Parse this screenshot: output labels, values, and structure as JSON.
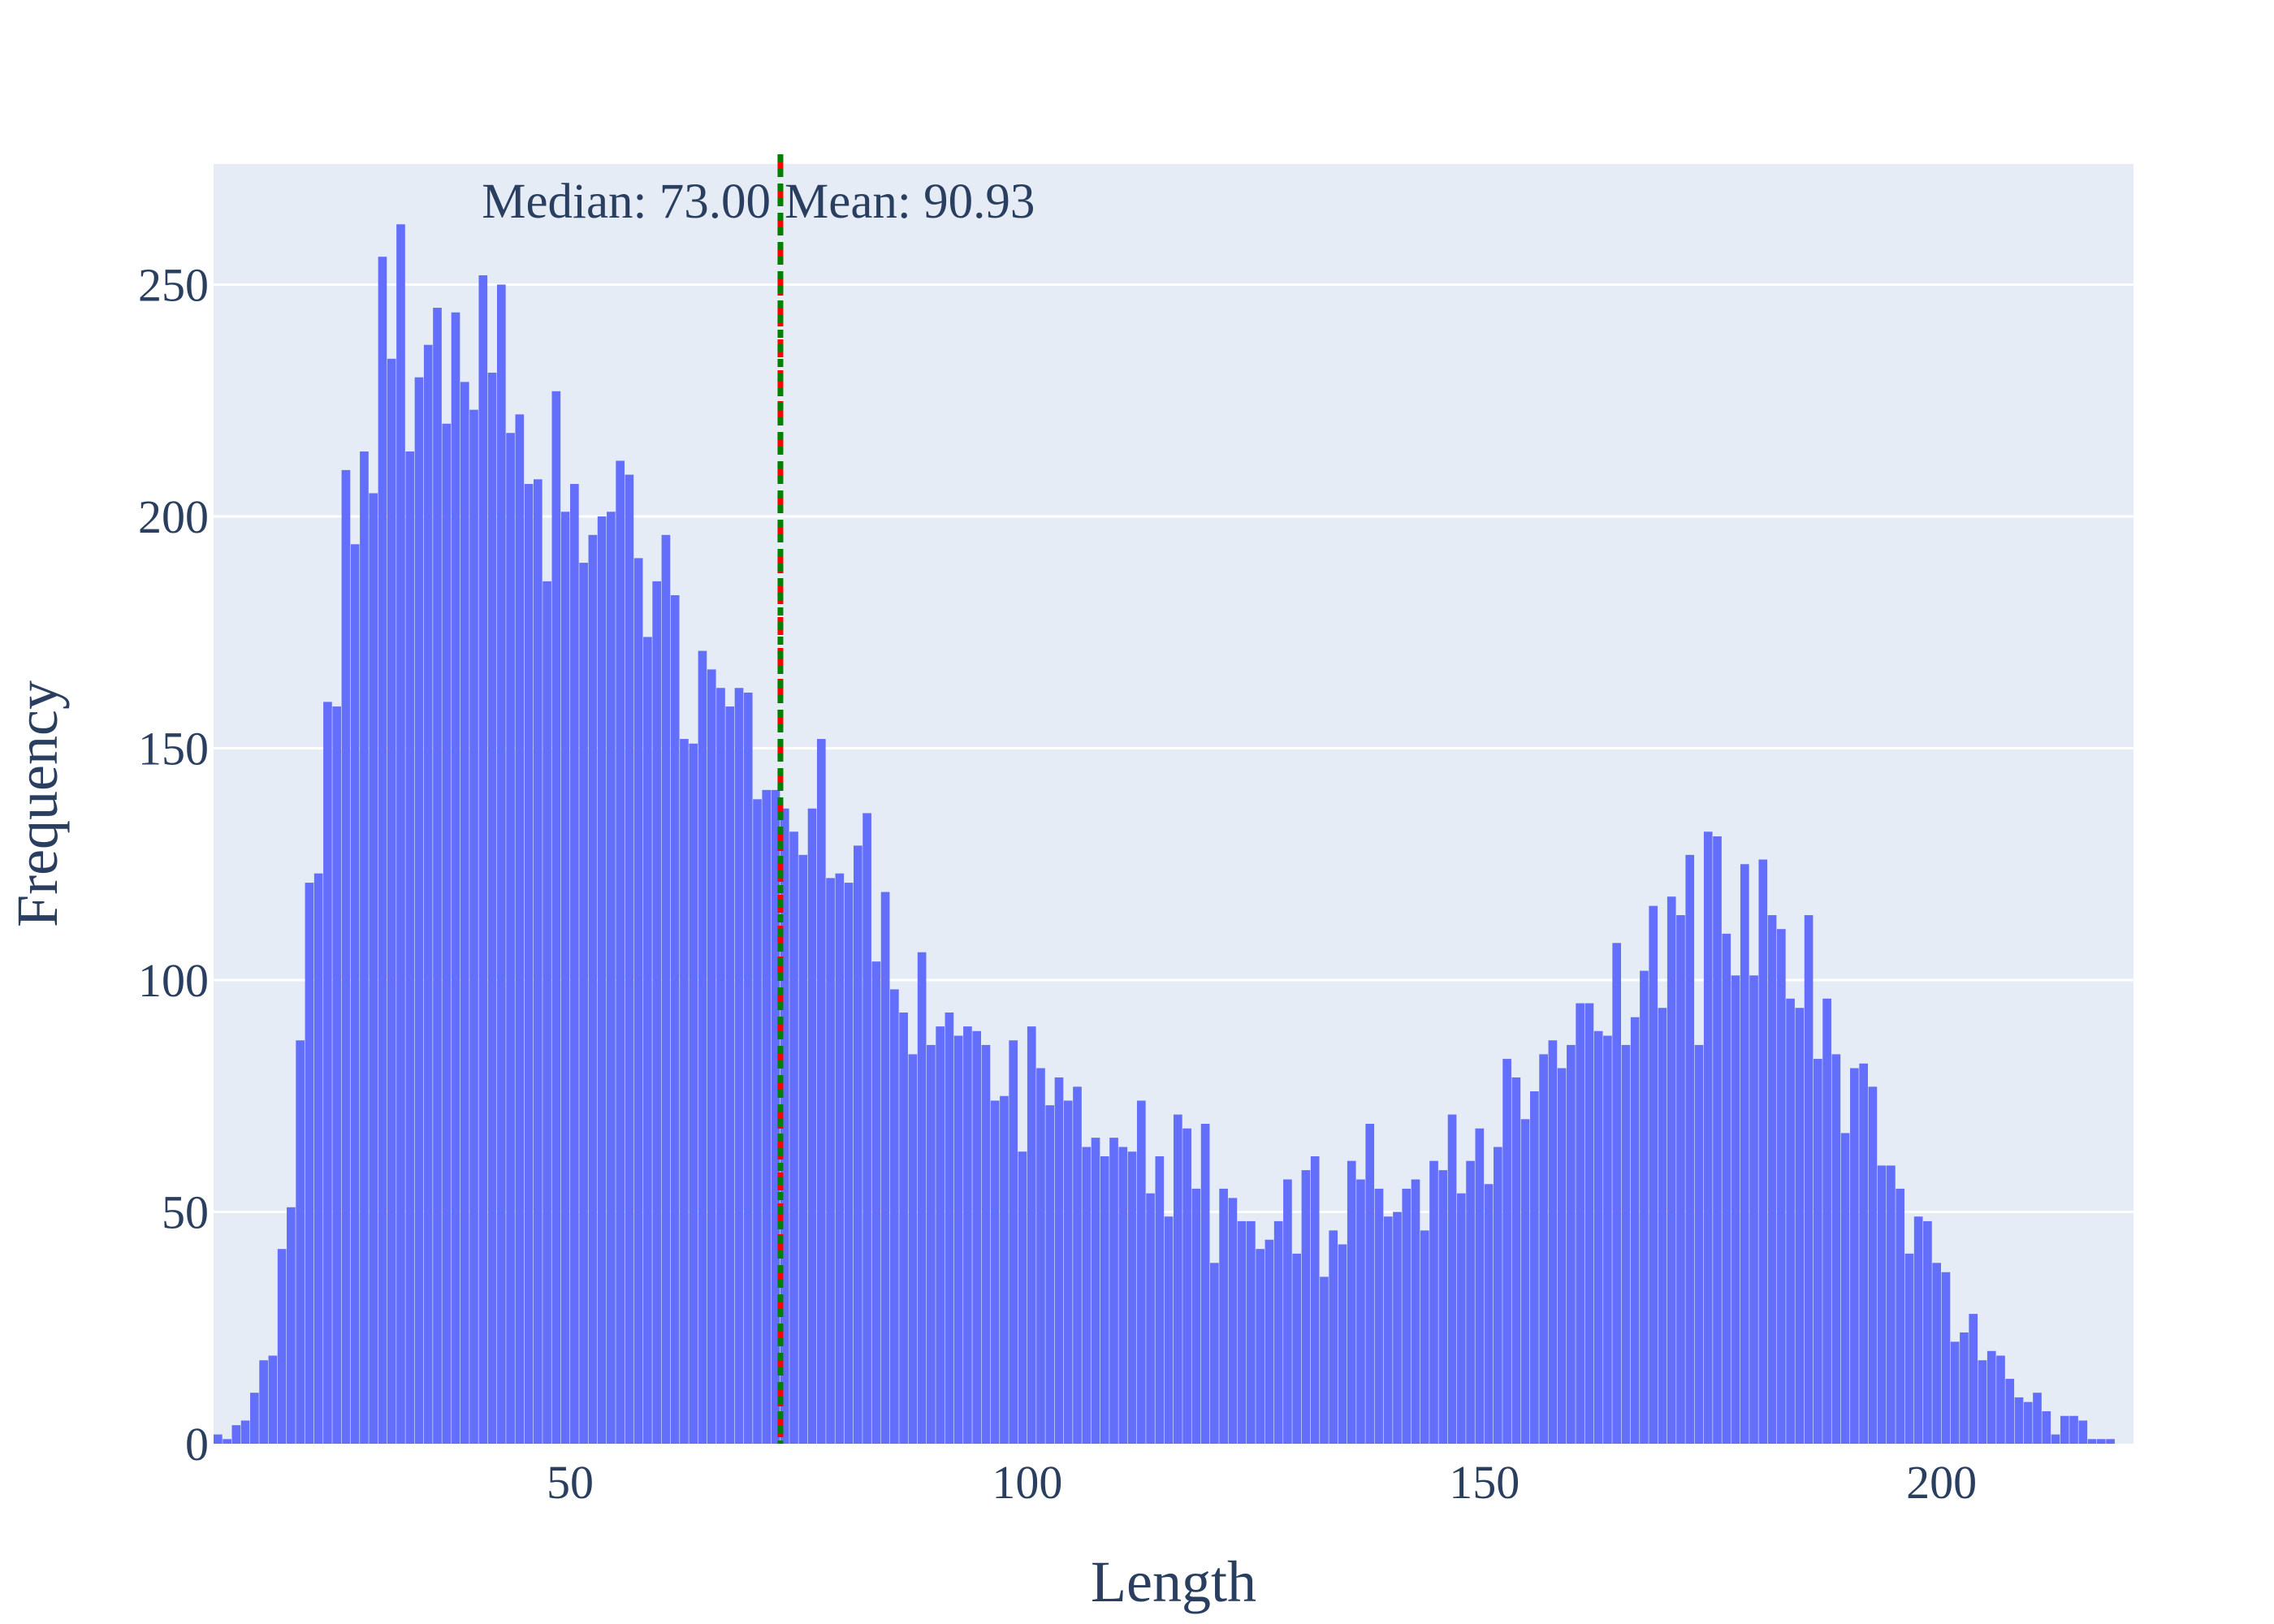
{
  "chart_data": {
    "type": "bar",
    "title": "",
    "xlabel": "Length",
    "ylabel": "Frequency",
    "xlim": [
      11,
      221
    ],
    "ylim": [
      0,
      276
    ],
    "bin_start": 11,
    "bin_width": 1,
    "x_ticks": [
      50,
      100,
      150,
      200
    ],
    "y_ticks": [
      0,
      50,
      100,
      150,
      200,
      250
    ],
    "values": [
      2,
      1,
      4,
      5,
      11,
      18,
      19,
      42,
      51,
      87,
      121,
      123,
      160,
      159,
      210,
      194,
      214,
      205,
      256,
      234,
      263,
      214,
      230,
      237,
      245,
      220,
      244,
      229,
      223,
      252,
      231,
      250,
      218,
      222,
      207,
      208,
      186,
      227,
      201,
      207,
      190,
      196,
      200,
      201,
      212,
      209,
      191,
      174,
      186,
      196,
      183,
      152,
      151,
      171,
      167,
      163,
      159,
      163,
      162,
      139,
      141,
      141,
      137,
      132,
      127,
      137,
      152,
      122,
      123,
      121,
      129,
      136,
      104,
      119,
      98,
      93,
      84,
      106,
      86,
      90,
      93,
      88,
      90,
      89,
      86,
      74,
      75,
      87,
      63,
      90,
      81,
      73,
      79,
      74,
      77,
      64,
      66,
      62,
      66,
      64,
      63,
      74,
      54,
      62,
      49,
      71,
      68,
      55,
      69,
      39,
      55,
      53,
      48,
      48,
      42,
      44,
      48,
      57,
      41,
      59,
      62,
      36,
      46,
      43,
      61,
      57,
      69,
      55,
      49,
      50,
      55,
      57,
      46,
      61,
      59,
      71,
      54,
      61,
      68,
      56,
      64,
      83,
      79,
      70,
      76,
      84,
      87,
      81,
      86,
      95,
      95,
      89,
      88,
      108,
      86,
      92,
      102,
      116,
      94,
      118,
      114,
      127,
      86,
      132,
      131,
      110,
      101,
      125,
      101,
      126,
      114,
      111,
      96,
      94,
      114,
      83,
      96,
      84,
      67,
      81,
      82,
      77,
      60,
      60,
      55,
      41,
      49,
      48,
      39,
      37,
      22,
      24,
      28,
      18,
      20,
      19,
      14,
      10,
      9,
      11,
      7,
      2,
      6,
      6,
      5,
      1,
      1,
      1
    ],
    "median": 73.0,
    "mean": 90.93,
    "median_label": "Median: 73.00",
    "mean_label": "Mean: 90.93",
    "bar_color": "#636efa",
    "median_line_color": "#ff0000",
    "mean_line_color": "#008000",
    "plot_bg": "#e5ecf6",
    "grid": true
  }
}
